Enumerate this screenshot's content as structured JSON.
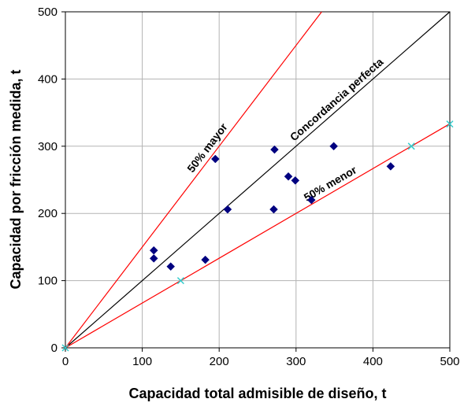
{
  "chart_data": {
    "type": "scatter",
    "xlabel": "Capacidad total admisible de diseño, t",
    "ylabel": "Capacidad por fricción medida, t",
    "xlim": [
      0,
      500
    ],
    "ylim": [
      0,
      500
    ],
    "xticks": [
      "0",
      "100",
      "200",
      "300",
      "400",
      "500"
    ],
    "yticks": [
      "0",
      "100",
      "200",
      "300",
      "400",
      "500"
    ],
    "grid": true,
    "series": [
      {
        "marker": "diamond",
        "color": "#000080",
        "points": [
          [
            115,
            145
          ],
          [
            115,
            133
          ],
          [
            137,
            121
          ],
          [
            182,
            131
          ],
          [
            195,
            281
          ],
          [
            211,
            206
          ],
          [
            272,
            295
          ],
          [
            271,
            206
          ],
          [
            290,
            255
          ],
          [
            299,
            249
          ],
          [
            320,
            220
          ],
          [
            349,
            300
          ],
          [
            423,
            270
          ]
        ]
      },
      {
        "marker": "x",
        "color": "#33CCCC",
        "points": [
          [
            0,
            0
          ],
          [
            150,
            100
          ],
          [
            450,
            300
          ],
          [
            500,
            333
          ]
        ]
      }
    ],
    "reference_lines": [
      {
        "label": "Concordancia perfecta",
        "slope": 1.0,
        "color": "#000000"
      },
      {
        "label": "50% mayor",
        "slope": 1.5,
        "color": "#FF0000"
      },
      {
        "label": "50% menor",
        "slope": 0.6667,
        "color": "#FF0000"
      }
    ]
  }
}
